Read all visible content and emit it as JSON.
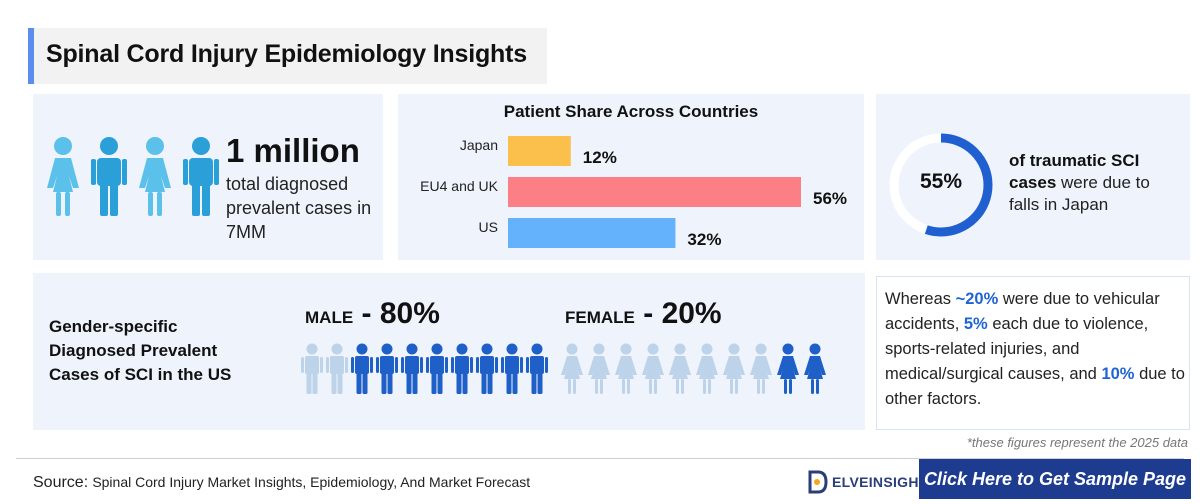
{
  "header": {
    "title": "Spinal Cord Injury Epidemiology Insights"
  },
  "prevalence": {
    "value": "1 million",
    "description": "total diagnosed prevalent cases in 7MM"
  },
  "patient_share": {
    "title": "Patient Share Across Countries",
    "chart_data": {
      "type": "bar",
      "categories": [
        "Japan",
        "EU4 and UK",
        "US"
      ],
      "values": [
        12,
        56,
        32
      ],
      "value_labels": [
        "12%",
        "56%",
        "32%"
      ],
      "colors": [
        "#fbbf4c",
        "#fb7f84",
        "#63b2fb"
      ]
    }
  },
  "falls": {
    "percent_label": "55%",
    "percent": 55,
    "text_bold": "of traumatic SCI cases",
    "text_rest": " were due to falls in Japan",
    "ring_color": "#1f5fd0",
    "track_color": "#ffffff"
  },
  "gender": {
    "label": "Gender-specific Diagnosed Prevalent Cases of SCI in the US",
    "male": {
      "word": "MALE",
      "sep": " - ",
      "pct": "80%",
      "filled": 8,
      "total": 10
    },
    "female": {
      "word": "FEMALE",
      "sep": " - ",
      "pct": "20%",
      "filled": 2,
      "total": 10
    },
    "filled_color": "#1f5fc8",
    "faded_color": "#bcd3ea"
  },
  "causes": {
    "p1": "Whereas ",
    "h1": "~20%",
    "p2": " were due to vehicular accidents, ",
    "h2": "5%",
    "p3": " each due to violence, sports-related injuries, and medical/surgical causes, and ",
    "h3": "10%",
    "p4": " due to other factors."
  },
  "footnote": "*these figures represent the 2025 data",
  "footer": {
    "source_label": "Source:",
    "source_text": "Spinal Cord Injury Market Insights, Epidemiology, And Market Forecast",
    "logo_text": "ELVEINSIGHT",
    "cta_label": "Click Here to Get Sample Page"
  },
  "icons": {
    "people": "person-icon",
    "logo": "delveinsight-logo-icon"
  },
  "colors": {
    "people_light": "#5cc1ea",
    "people_dark": "#2a9fd8"
  }
}
